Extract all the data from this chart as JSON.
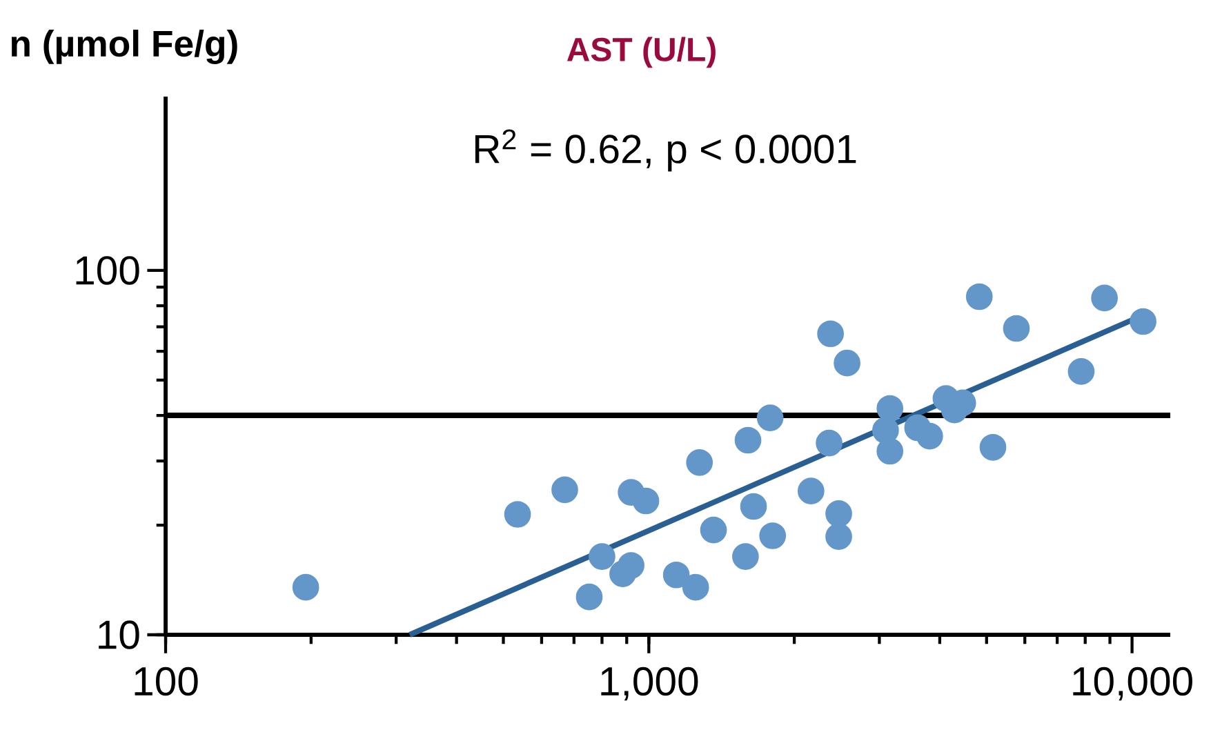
{
  "chart_data": {
    "type": "scatter",
    "title": "AST (U/L)",
    "ylabel": "n (µmol Fe/g)",
    "annotations": [
      "R$^{2}$ = 0.62, p < 0.0001"
    ],
    "log": "xy",
    "xlim": [
      100,
      12000
    ],
    "ylim": [
      10,
      300
    ],
    "xticks": [
      100,
      {
        "value": 1000,
        "label": "1,000"
      },
      {
        "value": 10000,
        "label": "10,000"
      }
    ],
    "yticks": [
      10,
      100
    ],
    "ref_lines": [
      {
        "axis": "y",
        "value": 40,
        "color": "#000000"
      }
    ],
    "series": [
      {
        "type": "scatter",
        "marker": "circle",
        "color": "#6497c9",
        "x": [
          195,
          535,
          670,
          753,
          800,
          883,
          919,
          919,
          986,
          1140,
          1250,
          1273,
          1361,
          1585,
          1604,
          1647,
          1783,
          1804,
          2166,
          2377,
          2572,
          2361,
          2472,
          2472,
          3155,
          3090,
          3155,
          3600,
          3814,
          4120,
          4463,
          4290,
          4830,
          5154,
          5763,
          7850,
          8770,
          10540
        ],
        "values": [
          13.5,
          21.4,
          25,
          12.7,
          16.4,
          14.7,
          15.5,
          24.6,
          23.3,
          14.6,
          13.5,
          29.7,
          19.4,
          16.4,
          34.2,
          22.5,
          39.4,
          18.7,
          24.8,
          67,
          55.7,
          33.6,
          21.5,
          18.6,
          41.8,
          36.4,
          31.9,
          37,
          35.1,
          44.5,
          43.3,
          41.4,
          84.7,
          32.7,
          69.3,
          52.8,
          84,
          72.4
        ]
      },
      {
        "type": "line",
        "color": "#2a5f93",
        "x": [
          320,
          10700
        ],
        "values": [
          10,
          76
        ]
      }
    ]
  }
}
